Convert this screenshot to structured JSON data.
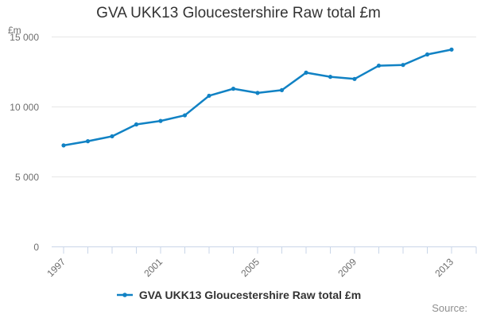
{
  "title": "GVA UKK13 Gloucestershire Raw total £m",
  "y_axis_unit_label": "£m",
  "legend": {
    "label": "GVA UKK13 Gloucestershire Raw total £m"
  },
  "footer": {
    "source_label": "Source:"
  },
  "colors": {
    "line": "#1182c4",
    "grid": "#e6e6e6",
    "axis": "#c9d6e8",
    "title_text": "#333333",
    "axis_text": "#6d6d6d",
    "legend_text": "#333333",
    "source_text": "#8e8e8e",
    "background": "#ffffff"
  },
  "chart_data": {
    "type": "line",
    "title": "GVA UKK13 Gloucestershire Raw total £m",
    "x": [
      1997,
      1998,
      1999,
      2000,
      2001,
      2002,
      2003,
      2004,
      2005,
      2006,
      2007,
      2008,
      2009,
      2010,
      2011,
      2012,
      2013
    ],
    "series": [
      {
        "name": "GVA UKK13 Gloucestershire Raw total £m",
        "color": "#1182c4",
        "values": [
          7250,
          7550,
          7900,
          8750,
          9000,
          9400,
          10800,
          11300,
          11000,
          11200,
          12450,
          12150,
          12000,
          12950,
          13000,
          13750,
          14100
        ]
      }
    ],
    "xlabel": "",
    "ylabel": "£m",
    "ylim": [
      0,
      15000
    ],
    "yticks": [
      0,
      5000,
      10000,
      15000
    ],
    "ytick_labels": [
      "0",
      "5 000",
      "10 000",
      "15 000"
    ],
    "xticks": [
      1997,
      2001,
      2005,
      2009,
      2013
    ],
    "grid": true,
    "marker": "circle",
    "legend_position": "bottom-center"
  }
}
